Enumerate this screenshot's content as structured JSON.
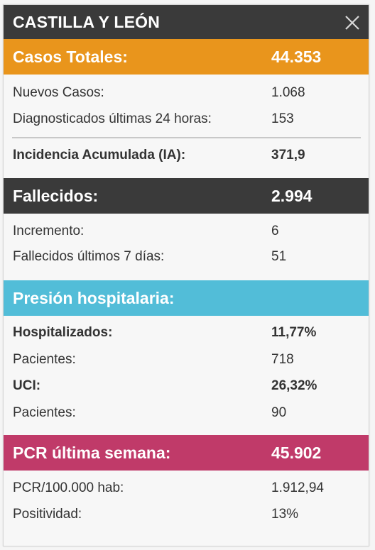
{
  "header": {
    "title": "CASTILLA Y LEÓN",
    "close_icon": "close-icon"
  },
  "colors": {
    "header": "#3a3a3a",
    "casos": "#e9951c",
    "fallecidos": "#3a3a3a",
    "hospital": "#52bdd8",
    "pcr": "#c03a69"
  },
  "casos": {
    "label": "Casos Totales:",
    "value": "44.353",
    "rows": [
      {
        "label": "Nuevos Casos:",
        "value": "1.068"
      },
      {
        "label": "Diagnosticados últimas 24 horas:",
        "value": "153"
      }
    ],
    "ia": {
      "label": "Incidencia Acumulada (IA):",
      "value": "371,9"
    }
  },
  "fallecidos": {
    "label": "Fallecidos:",
    "value": "2.994",
    "rows": [
      {
        "label": "Incremento:",
        "value": "6"
      },
      {
        "label": "Fallecidos últimos 7 días:",
        "value": "51"
      }
    ]
  },
  "hospital": {
    "label": "Presión hospitalaria:",
    "rows": [
      {
        "label": "Hospitalizados:",
        "value": "11,77%"
      },
      {
        "label": "Pacientes:",
        "value": "718"
      },
      {
        "label": "UCI:",
        "value": "26,32%"
      },
      {
        "label": "Pacientes:",
        "value": "90"
      }
    ]
  },
  "pcr": {
    "label": "PCR última semana:",
    "value": "45.902",
    "rows": [
      {
        "label": "PCR/100.000 hab:",
        "value": "1.912,94"
      },
      {
        "label": "Positividad:",
        "value": "13%"
      }
    ]
  }
}
